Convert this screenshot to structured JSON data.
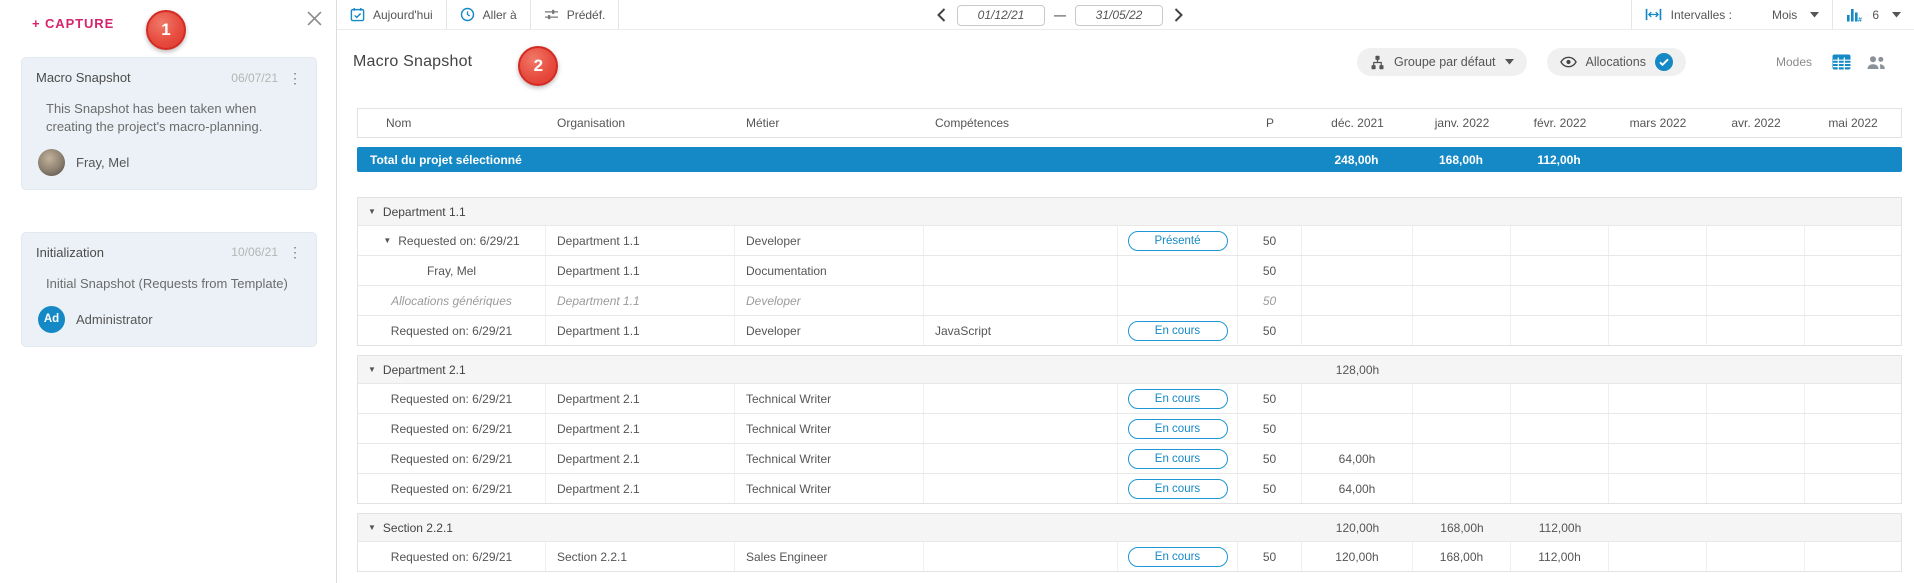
{
  "colors": {
    "accent_blue": "#1489c5",
    "capture_pink": "#d6246e",
    "badge_red": "#e23b34"
  },
  "sidebar": {
    "capture_label": "+ CAPTURE",
    "badge1": "1",
    "snapshots": [
      {
        "title": "Macro Snapshot",
        "date": "06/07/21",
        "description": "This Snapshot has been taken when creating the project's macro-planning.",
        "user": "Fray, Mel",
        "avatar_initials": ""
      },
      {
        "title": "Initialization",
        "date": "10/06/21",
        "description": "Initial Snapshot (Requests from Template)",
        "user": "Administrator",
        "avatar_initials": "Ad"
      }
    ]
  },
  "toolbar": {
    "today_label": "Aujourd'hui",
    "goto_label": "Aller à",
    "predef_label": "Prédéf.",
    "date_from": "01/12/21",
    "date_separator": "—",
    "date_to": "31/05/22",
    "intervals_label": "Intervalles :",
    "interval_value": "Mois",
    "chart_count": "6"
  },
  "header": {
    "title": "Macro Snapshot",
    "badge2": "2",
    "group_button": "Groupe par défaut",
    "allocations_button": "Allocations",
    "modes_label": "Modes"
  },
  "table": {
    "columns": {
      "nom": "Nom",
      "organisation": "Organisation",
      "metier": "Métier",
      "competences": "Compétences",
      "status": "",
      "p": "P"
    },
    "months": [
      "déc. 2021",
      "janv. 2022",
      "févr. 2022",
      "mars 2022",
      "avr. 2022",
      "mai 2022"
    ],
    "total_row": {
      "label": "Total du projet sélectionné",
      "values": [
        "248,00h",
        "168,00h",
        "112,00h",
        "",
        "",
        ""
      ]
    },
    "groups": [
      {
        "name": "Department 1.1",
        "totals": [
          "",
          "",
          "",
          "",
          "",
          ""
        ],
        "rows": [
          {
            "expand": true,
            "nom": "Requested on: 6/29/21",
            "org": "Department 1.1",
            "metier": "Developer",
            "comp": "",
            "status": "Présenté",
            "p": "50",
            "vals": [
              "",
              "",
              "",
              "",
              "",
              ""
            ]
          },
          {
            "nom": "Fray, Mel",
            "org": "Department 1.1",
            "metier": "Documentation",
            "comp": "",
            "status": "",
            "p": "50",
            "vals": [
              "",
              "",
              "",
              "",
              "",
              ""
            ]
          },
          {
            "italic": true,
            "nom": "Allocations génériques",
            "org": "Department 1.1",
            "metier": "Developer",
            "comp": "",
            "status": "",
            "p": "50",
            "vals": [
              "",
              "",
              "",
              "",
              "",
              ""
            ]
          },
          {
            "nom": "Requested on: 6/29/21",
            "org": "Department 1.1",
            "metier": "Developer",
            "comp": "JavaScript",
            "status": "En cours",
            "p": "50",
            "vals": [
              "",
              "",
              "",
              "",
              "",
              ""
            ]
          }
        ]
      },
      {
        "name": "Department 2.1",
        "totals": [
          "128,00h",
          "",
          "",
          "",
          "",
          ""
        ],
        "rows": [
          {
            "nom": "Requested on: 6/29/21",
            "org": "Department 2.1",
            "metier": "Technical Writer",
            "comp": "",
            "status": "En cours",
            "p": "50",
            "vals": [
              "",
              "",
              "",
              "",
              "",
              ""
            ]
          },
          {
            "nom": "Requested on: 6/29/21",
            "org": "Department 2.1",
            "metier": "Technical Writer",
            "comp": "",
            "status": "En cours",
            "p": "50",
            "vals": [
              "",
              "",
              "",
              "",
              "",
              ""
            ]
          },
          {
            "nom": "Requested on: 6/29/21",
            "org": "Department 2.1",
            "metier": "Technical Writer",
            "comp": "",
            "status": "En cours",
            "p": "50",
            "vals": [
              "64,00h",
              "",
              "",
              "",
              "",
              ""
            ]
          },
          {
            "nom": "Requested on: 6/29/21",
            "org": "Department 2.1",
            "metier": "Technical Writer",
            "comp": "",
            "status": "En cours",
            "p": "50",
            "vals": [
              "64,00h",
              "",
              "",
              "",
              "",
              ""
            ]
          }
        ]
      },
      {
        "name": "Section 2.2.1",
        "totals": [
          "120,00h",
          "168,00h",
          "112,00h",
          "",
          "",
          ""
        ],
        "rows": [
          {
            "nom": "Requested on: 6/29/21",
            "org": "Section 2.2.1",
            "metier": "Sales Engineer",
            "comp": "",
            "status": "En cours",
            "p": "50",
            "vals": [
              "120,00h",
              "168,00h",
              "112,00h",
              "",
              "",
              ""
            ]
          }
        ]
      }
    ]
  }
}
